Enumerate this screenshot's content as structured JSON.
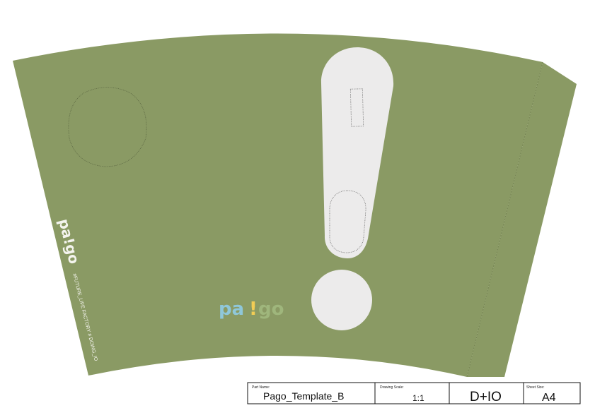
{
  "template": {
    "colors": {
      "sleeve": "#8a9a64",
      "shape": "#ecebeb",
      "logo_blue": "#8fc7d9",
      "logo_yellow": "#f2cd55",
      "logo_green": "#9fb67c",
      "brand_white": "#f4f4ee"
    }
  },
  "brand": {
    "logo_text_pa": "pa",
    "logo_text_bang": "!",
    "logo_text_go": "go",
    "vertical_logo": "pa!go",
    "vertical_tagline": "#FUTURE_LIFE FACTORY # DOING_IO"
  },
  "title_block": {
    "part_name_label": "Part Name:",
    "part_name_value": "Pago_Template_B",
    "drawing_scale_label": "Drawing Scale:",
    "drawing_scale_value": "1:1",
    "company": "D+IO",
    "sheet_size_label": "Sheet Size:",
    "sheet_size_value": "A4"
  }
}
